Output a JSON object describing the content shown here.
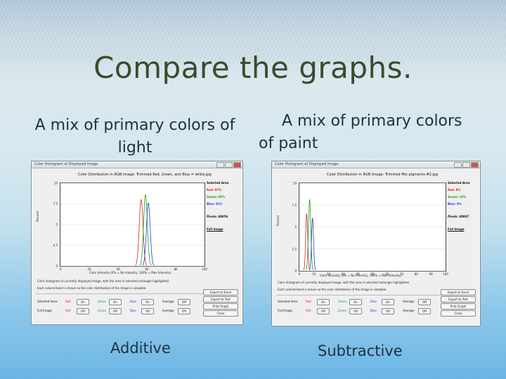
{
  "slide": {
    "title": "Compare the graphs.",
    "left_caption": "A mix of primary colors of light",
    "right_caption": "A mix of primary colors of paint",
    "left_label": "Additive",
    "right_label": "Subtractive"
  },
  "left_window": {
    "window_title": "Color Histogram of Displayed Image",
    "chart_title": "Color Distribution in RGB Image: Trimmed Red, Green, and Blue = white.jpg",
    "y_ticks": [
      "10",
      "7.5",
      "5",
      "2.5",
      "0"
    ],
    "x_ticks": [
      "0",
      "20",
      "40",
      "60",
      "80",
      "100"
    ],
    "x_axis_label": "Color Intensity (0% = No Intensity, 100% = Max Intensity)",
    "y_axis_label": "Percent",
    "legend_title": "Selected Area",
    "legend": [
      "Red: 97%",
      "Green: 95%",
      "Blue: 91%"
    ],
    "pixels": "Pixels: 49856",
    "full_image": "Full Image",
    "info1": "Color histogram of currently displayed image, with the area in selected rectangle highlighted.",
    "info2": "Each colored band is drawn so the color distribution of the image is viewable.",
    "ctrl_row1": [
      "Selected Area:",
      "Red",
      "On",
      "Green",
      "On",
      "Blue",
      "On",
      "Average",
      "Off"
    ],
    "ctrl_row2": [
      "Full Image:",
      "Red",
      "Off",
      "Green",
      "Off",
      "Blue",
      "Off",
      "Average",
      "Off"
    ],
    "side_buttons": [
      "Export to Excel",
      "Export to Text",
      "Print Graph",
      "Close"
    ]
  },
  "right_window": {
    "window_title": "Color Histogram of Displayed Image",
    "chart_title": "Color Distribution in RGB Image: Trimmed Mix pigments #2.jpg",
    "y_ticks": [
      "10",
      "7.5",
      "5",
      "2.5",
      "0"
    ],
    "x_ticks": [
      "0",
      "10",
      "20",
      "30",
      "40",
      "50",
      "60",
      "70",
      "80",
      "90",
      "100"
    ],
    "x_axis_label": "Color Intensity (0% = No Intensity, 100% = Max Intensity)",
    "y_axis_label": "Percent",
    "legend_title": "Selected Area",
    "legend": [
      "Red: 8%",
      "Green: 10%",
      "Blue: 9%"
    ],
    "pixels": "Pixels: 40887",
    "full_image": "Full Image",
    "info1": "Color histogram of currently displayed image, with the area in selected rectangle highlighted.",
    "info2": "Each colored band is drawn so the color distribution of the image is viewable.",
    "ctrl_row1": [
      "Selected Area:",
      "Red",
      "On",
      "Green",
      "On",
      "Blue",
      "On",
      "Average",
      "Off"
    ],
    "ctrl_row2": [
      "Full Image:",
      "Red",
      "Off",
      "Green",
      "Off",
      "Blue",
      "Off",
      "Average",
      "Off"
    ],
    "side_buttons": [
      "Export to Excel",
      "Export to Text",
      "Print Graph",
      "Close"
    ]
  },
  "colors": {
    "red": "#e02020",
    "green": "#18a018",
    "blue": "#2040e0",
    "title": "#3a4a2d",
    "text": "#20323d"
  }
}
